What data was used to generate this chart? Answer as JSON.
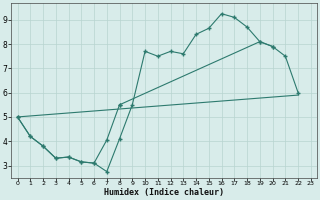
{
  "background_color": "#d8ecea",
  "grid_color": "#b8d4d0",
  "line_color": "#2d7a6e",
  "xlabel": "Humidex (Indice chaleur)",
  "xlim": [
    -0.5,
    23.5
  ],
  "ylim": [
    2.5,
    9.7
  ],
  "xticks": [
    0,
    1,
    2,
    3,
    4,
    5,
    6,
    7,
    8,
    9,
    10,
    11,
    12,
    13,
    14,
    15,
    16,
    17,
    18,
    19,
    20,
    21,
    22,
    23
  ],
  "yticks": [
    3,
    4,
    5,
    6,
    7,
    8,
    9
  ],
  "line1": {
    "x": [
      0,
      1,
      2,
      3,
      4,
      5,
      6,
      7,
      8,
      9,
      10,
      11,
      12,
      13,
      14,
      15,
      16,
      17,
      18,
      19,
      20
    ],
    "y": [
      5.0,
      4.2,
      3.8,
      3.3,
      3.35,
      3.15,
      3.1,
      2.75,
      4.1,
      5.5,
      7.7,
      7.5,
      7.7,
      7.6,
      8.4,
      8.65,
      9.25,
      9.1,
      8.7,
      8.1,
      7.9
    ]
  },
  "line2": {
    "x": [
      0,
      1,
      2,
      3,
      4,
      5,
      6,
      7,
      8,
      19,
      20,
      21,
      22
    ],
    "y": [
      5.0,
      4.2,
      3.8,
      3.3,
      3.35,
      3.15,
      3.1,
      4.05,
      5.5,
      8.1,
      7.9,
      7.5,
      6.0
    ]
  },
  "line3": {
    "x": [
      0,
      22
    ],
    "y": [
      5.0,
      5.9
    ]
  }
}
